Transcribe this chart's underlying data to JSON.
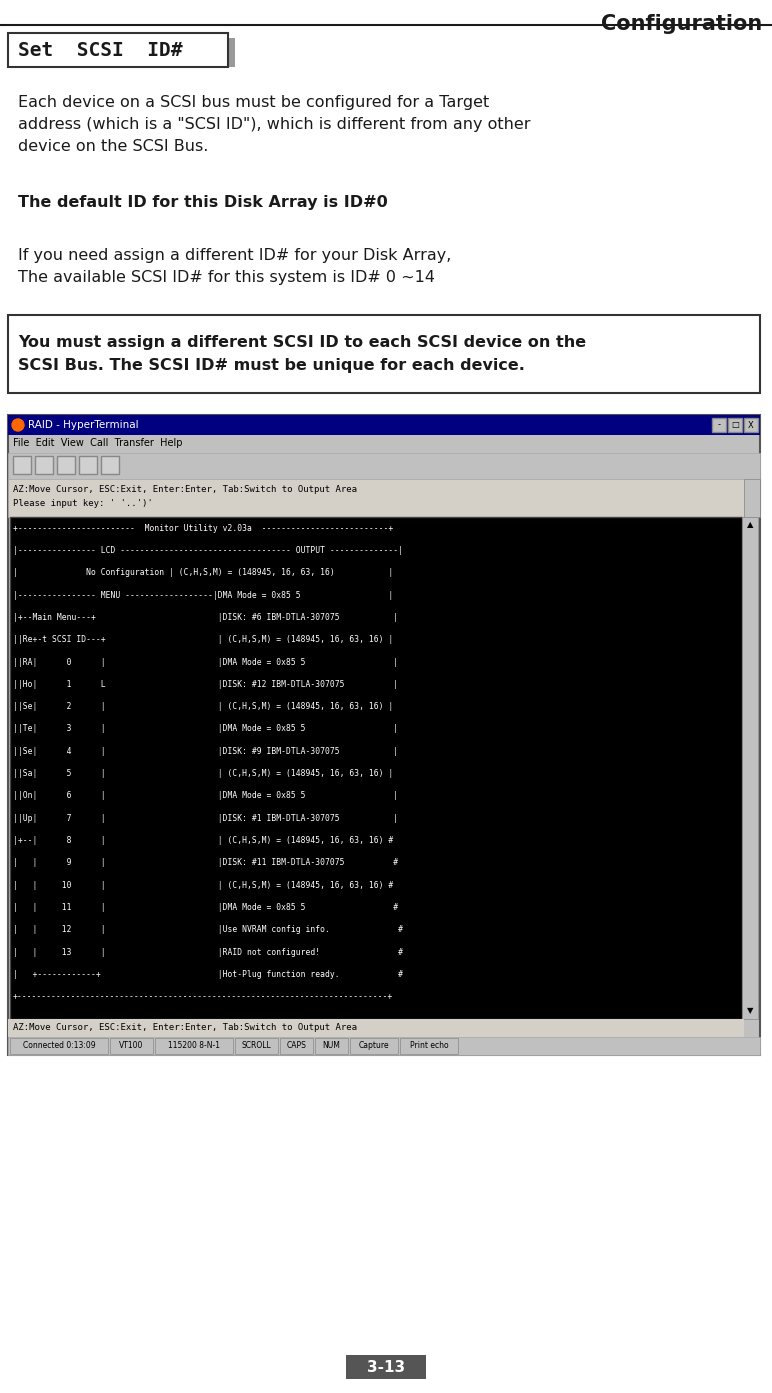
{
  "title": "Configuration",
  "section_title": "Set  SCSI  ID#",
  "para1": "Each device on a SCSI bus must be configured for a Target\naddress (which is a \"SCSI ID\"), which is different from any other\ndevice on the SCSI Bus.",
  "para2_bold": "The default ID for this Disk Array is ID#0",
  "para3": "If you need assign a different ID# for your Disk Array,\nThe available SCSI ID# for this system is ID# 0 ~14",
  "warning_box": "You must assign a different SCSI ID to each SCSI device on the\nSCSI Bus. The SCSI ID# must be unique for each device.",
  "page_num": "3-13",
  "bg_color": "#ffffff",
  "title_color": "#1a1a1a",
  "text_color": "#1a1a1a",
  "page_label_bg": "#555555",
  "page_label_fg": "#ffffff",
  "terminal_title_bg": "#000080",
  "terminal_title_fg": "#ffffff",
  "terminal_bg": "#c0c0c0",
  "terminal_title_text": "RAID - HyperTerminal",
  "terminal_menu": "File  Edit  View  Call  Transfer  Help",
  "terminal_body_lines": [
    "+------------------------  Monitor Utility v2.03a  --------------------------+",
    "|---------------- LCD ----------------------------------- OUTPUT --------------|",
    "|              No Configuration | (C,H,S,M) = (148945, 16, 63, 16)           |",
    "|---------------- MENU ------------------|DMA Mode = 0x85 5                  |",
    "|+--Main Menu---+                         |DISK: #6 IBM-DTLA-307075           |",
    "||Re+-t SCSI ID---+                       | (C,H,S,M) = (148945, 16, 63, 16) |",
    "||RA|      0      |                       |DMA Mode = 0x85 5                  |",
    "||Ho|      1      L                       |DISK: #12 IBM-DTLA-307075          |",
    "||Se|      2      |                       | (C,H,S,M) = (148945, 16, 63, 16) |",
    "||Te|      3      |                       |DMA Mode = 0x85 5                  |",
    "||Se|      4      |                       |DISK: #9 IBM-DTLA-307075           |",
    "||Sa|      5      |                       | (C,H,S,M) = (148945, 16, 63, 16) |",
    "||On|      6      |                       |DMA Mode = 0x85 5                  |",
    "||Up|      7      |                       |DISK: #1 IBM-DTLA-307075           |",
    "|+--|      8      |                       | (C,H,S,M) = (148945, 16, 63, 16) #",
    "|   |      9      |                       |DISK: #11 IBM-DTLA-307075          #",
    "|   |     10      |                       | (C,H,S,M) = (148945, 16, 63, 16) #",
    "|   |     11      |                       |DMA Mode = 0x85 5                  #",
    "|   |     12      |                       |Use NVRAM config info.              #",
    "|   |     13      |                       |RAID not configured!                #",
    "|   +------------+                        |Hot-Plug function ready.            #",
    "+----------------------------------------------------------------------------+"
  ],
  "terminal_status_bottom": "AZ:Move Cursor, ESC:Exit, Enter:Enter, Tab:Switch to Output Area",
  "terminal_statusbar_text": "Connected 0:13:09    VT100    115200 8-N-1    SCROLL  CAPS  NUM  Capture  Print echo"
}
